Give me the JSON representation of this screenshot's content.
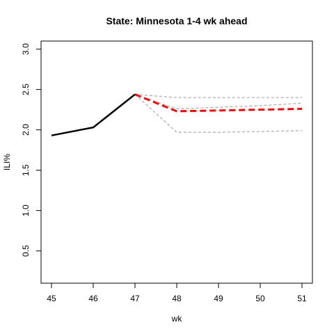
{
  "chart_data": {
    "type": "line",
    "title": "State: Minnesota 1-4 wk ahead",
    "xlabel": "wk",
    "ylabel": "ILI%",
    "xlim": [
      45,
      51
    ],
    "ylim": [
      0.1,
      3.1
    ],
    "x_ticks": [
      45,
      46,
      47,
      48,
      49,
      50,
      51
    ],
    "y_ticks": [
      0.5,
      1.0,
      1.5,
      2.0,
      2.5,
      3.0
    ],
    "y_tick_labels": [
      "0.5",
      "1.0",
      "1.5",
      "2.0",
      "2.5",
      "3.0"
    ],
    "grid": false,
    "legend": "none",
    "series": [
      {
        "role": "observed",
        "color": "#000000",
        "style": "solid",
        "x": [
          45,
          46,
          47
        ],
        "y": [
          1.93,
          2.03,
          2.44
        ]
      },
      {
        "role": "forecast",
        "color": "#ff0000",
        "style": "dashed",
        "x": [
          47,
          48,
          49,
          50,
          51
        ],
        "y": [
          2.44,
          2.23,
          2.24,
          2.25,
          2.26
        ]
      },
      {
        "role": "upper-bound",
        "color": "#a9a9a9",
        "style": "dashed",
        "x": [
          47,
          48,
          49,
          50,
          51
        ],
        "y": [
          2.44,
          2.4,
          2.4,
          2.4,
          2.4
        ]
      },
      {
        "role": "inner-upper-bound",
        "color": "#a9a9a9",
        "style": "dashed",
        "x": [
          47,
          48,
          49,
          50,
          51
        ],
        "y": [
          2.44,
          2.26,
          2.28,
          2.3,
          2.33
        ]
      },
      {
        "role": "lower-bound",
        "color": "#a9a9a9",
        "style": "dashed",
        "x": [
          47,
          48,
          49,
          50,
          51
        ],
        "y": [
          2.44,
          1.97,
          1.97,
          1.98,
          1.99
        ]
      }
    ]
  }
}
